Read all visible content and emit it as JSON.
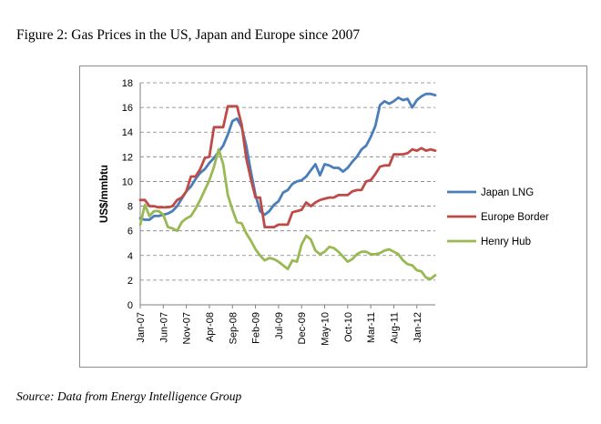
{
  "figure_title": "Figure 2: Gas Prices in the US, Japan and Europe since 2007",
  "source_note": "Source: Data from Energy Intelligence Group",
  "chart_data": {
    "type": "line",
    "ylabel": "US$/mmbtu",
    "xlabel": "",
    "ylim": [
      0,
      18
    ],
    "yticks": [
      0,
      2,
      4,
      6,
      8,
      10,
      12,
      14,
      16,
      18
    ],
    "grid": "horizontal-dashed",
    "legend_position": "right",
    "x_tick_labels": [
      "Jan-07",
      "Jun-07",
      "Nov-07",
      "Apr-08",
      "Sep-08",
      "Feb-09",
      "Jul-09",
      "Dec-09",
      "May-10",
      "Oct-10",
      "Mar-11",
      "Aug-11",
      "Jan-12"
    ],
    "x_tick_offsets_months": [
      0,
      5,
      10,
      15,
      20,
      25,
      30,
      35,
      40,
      45,
      50,
      55,
      60
    ],
    "x_domain_months": [
      0,
      64
    ],
    "series": [
      {
        "name": "Japan LNG",
        "color": "#4a7ebb",
        "x": [
          0,
          1,
          2,
          3,
          4,
          5,
          6,
          7,
          8,
          9,
          10,
          11,
          12,
          13,
          14,
          15,
          16,
          17,
          18,
          19,
          20,
          21,
          22,
          23,
          24,
          25,
          26,
          27,
          28,
          29,
          30,
          31,
          32,
          33,
          34,
          35,
          36,
          37,
          38,
          39,
          40,
          41,
          42,
          43,
          44,
          45,
          46,
          47,
          48,
          49,
          50,
          51,
          52,
          53,
          54,
          55,
          56,
          57,
          58,
          59,
          60,
          61,
          62,
          63,
          64
        ],
        "values": [
          7.0,
          6.9,
          6.9,
          7.2,
          7.2,
          7.3,
          7.4,
          7.6,
          8.0,
          8.6,
          9.2,
          9.6,
          10.2,
          10.7,
          11.0,
          11.5,
          11.9,
          12.4,
          12.9,
          13.8,
          14.9,
          15.1,
          14.4,
          12.9,
          10.8,
          8.9,
          7.6,
          7.3,
          7.6,
          8.1,
          8.4,
          9.1,
          9.3,
          9.8,
          10.0,
          10.1,
          10.4,
          10.9,
          11.4,
          10.5,
          11.4,
          11.3,
          11.1,
          11.1,
          10.8,
          11.1,
          11.6,
          12.0,
          12.6,
          12.9,
          13.6,
          14.5,
          16.2,
          16.5,
          16.3,
          16.5,
          16.8,
          16.6,
          16.7,
          16.0,
          16.6,
          16.9,
          17.1,
          17.1,
          17.0
        ]
      },
      {
        "name": "Europe Border",
        "color": "#be4b48",
        "x": [
          0,
          1,
          2,
          3,
          4,
          5,
          6,
          7,
          8,
          9,
          10,
          11,
          12,
          13,
          14,
          15,
          16,
          17,
          18,
          19,
          20,
          21,
          22,
          23,
          24,
          25,
          26,
          27,
          28,
          29,
          30,
          31,
          32,
          33,
          34,
          35,
          36,
          37,
          38,
          39,
          40,
          41,
          42,
          43,
          44,
          45,
          46,
          47,
          48,
          49,
          50,
          51,
          52,
          53,
          54,
          55,
          56,
          57,
          58,
          59,
          60,
          61,
          62,
          63,
          64
        ],
        "values": [
          8.5,
          8.5,
          8.0,
          8.0,
          7.9,
          7.9,
          7.9,
          8.0,
          8.5,
          8.7,
          9.2,
          10.4,
          10.4,
          11.0,
          11.9,
          12.0,
          14.4,
          14.4,
          14.4,
          16.1,
          16.1,
          16.1,
          14.6,
          11.9,
          10.2,
          8.7,
          8.7,
          6.3,
          6.3,
          6.3,
          6.5,
          6.5,
          6.5,
          7.5,
          7.6,
          7.7,
          8.3,
          8.0,
          8.3,
          8.5,
          8.6,
          8.7,
          8.7,
          8.9,
          8.9,
          8.9,
          9.2,
          9.3,
          9.3,
          10.0,
          10.1,
          10.6,
          11.2,
          11.3,
          11.3,
          12.2,
          12.2,
          12.2,
          12.3,
          12.6,
          12.5,
          12.7,
          12.5,
          12.6,
          12.5
        ]
      },
      {
        "name": "Henry Hub",
        "color": "#98b954",
        "x": [
          0,
          1,
          2,
          3,
          4,
          5,
          6,
          7,
          8,
          9,
          10,
          11,
          12,
          13,
          14,
          15,
          16,
          17,
          18,
          19,
          20,
          21,
          22,
          23,
          24,
          25,
          26,
          27,
          28,
          29,
          30,
          31,
          32,
          33,
          34,
          35,
          36,
          37,
          38,
          39,
          40,
          41,
          42,
          43,
          44,
          45,
          46,
          47,
          48,
          49,
          50,
          51,
          52,
          53,
          54,
          55,
          56,
          57,
          58,
          59,
          60,
          61,
          62,
          63,
          64
        ],
        "values": [
          6.5,
          8.1,
          7.2,
          7.6,
          7.6,
          7.3,
          6.3,
          6.2,
          6.0,
          6.7,
          7.0,
          7.2,
          7.8,
          8.5,
          9.3,
          10.1,
          11.2,
          12.6,
          11.4,
          8.9,
          7.7,
          6.7,
          6.6,
          5.8,
          5.2,
          4.5,
          4.0,
          3.6,
          3.8,
          3.7,
          3.5,
          3.2,
          2.9,
          3.6,
          3.5,
          4.9,
          5.6,
          5.3,
          4.4,
          4.1,
          4.3,
          4.7,
          4.6,
          4.3,
          3.9,
          3.5,
          3.7,
          4.1,
          4.3,
          4.3,
          4.1,
          4.1,
          4.2,
          4.4,
          4.5,
          4.3,
          4.1,
          3.6,
          3.3,
          3.2,
          2.8,
          2.7,
          2.2,
          2.1,
          2.4
        ]
      }
    ]
  }
}
